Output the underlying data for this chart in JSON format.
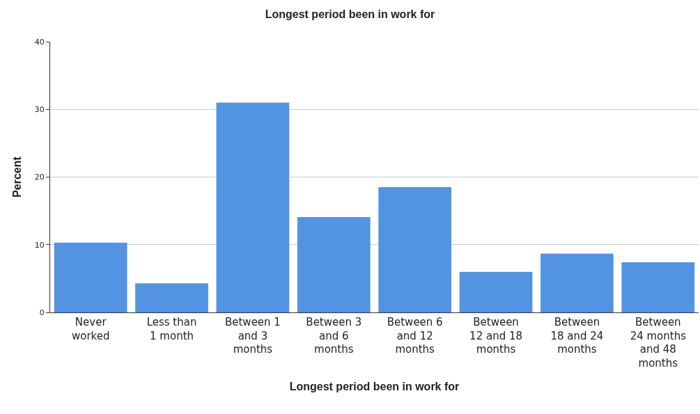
{
  "chart_data": {
    "type": "bar",
    "title": "Longest period been in work for",
    "xlabel": "Longest period been in work for",
    "ylabel": "Percent",
    "categories": [
      "Never worked",
      "Less than 1 month",
      "Between 1 and 3 months",
      "Between 3 and 6 months",
      "Between 6 and 12 months",
      "Between 12 and 18 months",
      "Between 18 and 24 months",
      "Between 24 months and 48 months"
    ],
    "values": [
      10.3,
      4.3,
      31.0,
      14.1,
      18.5,
      6.0,
      8.7,
      7.4
    ],
    "color": "#5294e2",
    "ylim": [
      0,
      40
    ],
    "yticks": [
      0,
      10,
      20,
      30,
      40
    ],
    "grid": "y",
    "legend": false
  }
}
